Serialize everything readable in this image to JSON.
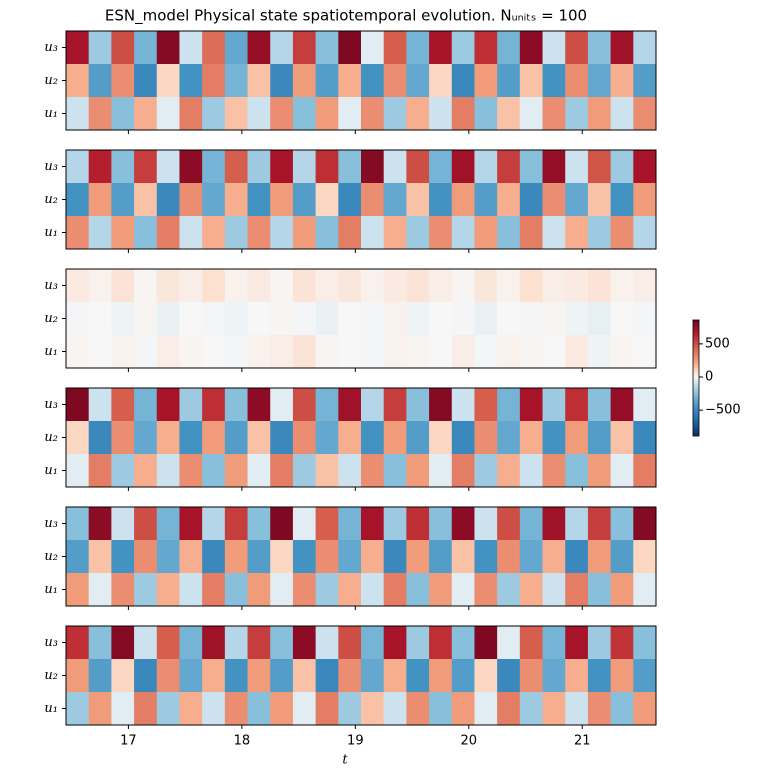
{
  "chart_data": {
    "type": "heatmap",
    "title": "ESN_model Physical state spatiotemporal evolution. Nᵤₙᵢₜₛ = 100",
    "xlabel": "t",
    "colormap": "RdBu_r",
    "xlim": [
      16.45,
      21.65
    ],
    "xticks": [
      17,
      18,
      19,
      20,
      21
    ],
    "x_edges": [
      16.45,
      16.65,
      16.85,
      17.05,
      17.25,
      17.45,
      17.65,
      17.85,
      18.05,
      18.25,
      18.45,
      18.65,
      18.85,
      19.05,
      19.25,
      19.45,
      19.65,
      19.85,
      20.05,
      20.25,
      20.45,
      20.65,
      20.85,
      21.05,
      21.25,
      21.45,
      21.65
    ],
    "rows": [
      "u₃",
      "u₂",
      "u₁"
    ],
    "panels": [
      {
        "values": [
          [
            700,
            -200,
            500,
            -300,
            800,
            -100,
            400,
            -350,
            750,
            -150,
            550,
            -250,
            820,
            -50,
            450,
            -300,
            700,
            -200,
            600,
            -300,
            780,
            -100,
            500,
            -250,
            720,
            -150
          ],
          [
            200,
            -400,
            300,
            -500,
            100,
            -450,
            350,
            -300,
            150,
            -500,
            250,
            -400,
            200,
            -450,
            300,
            -350,
            100,
            -500,
            250,
            -400,
            150,
            -450,
            300,
            -350,
            200,
            -400
          ],
          [
            -100,
            300,
            -250,
            200,
            -50,
            350,
            -200,
            150,
            -100,
            300,
            -250,
            250,
            -50,
            300,
            -200,
            200,
            -100,
            350,
            -250,
            150,
            -50,
            300,
            -200,
            250,
            -100,
            300
          ]
        ]
      },
      {
        "values": [
          [
            -150,
            650,
            -250,
            550,
            -100,
            780,
            -300,
            450,
            -200,
            700,
            -150,
            600,
            -250,
            800,
            -100,
            500,
            -300,
            720,
            -150,
            550,
            -250,
            760,
            -100,
            480,
            -200,
            700
          ],
          [
            -450,
            250,
            -400,
            150,
            -500,
            300,
            -350,
            200,
            -450,
            250,
            -400,
            100,
            -500,
            300,
            -350,
            150,
            -450,
            250,
            -400,
            200,
            -500,
            300,
            -350,
            150,
            -450,
            250
          ],
          [
            300,
            -150,
            250,
            -250,
            350,
            -100,
            200,
            -200,
            300,
            -150,
            250,
            -250,
            350,
            -100,
            200,
            -200,
            300,
            -150,
            250,
            -250,
            350,
            -100,
            200,
            -200,
            300,
            -150
          ]
        ]
      },
      {
        "values": [
          [
            40,
            20,
            60,
            10,
            50,
            30,
            70,
            20,
            40,
            10,
            60,
            30,
            50,
            20,
            40,
            60,
            30,
            10,
            50,
            20,
            70,
            30,
            40,
            60,
            20,
            30
          ],
          [
            -10,
            0,
            -20,
            10,
            -30,
            0,
            -10,
            -20,
            0,
            10,
            -10,
            -30,
            0,
            -10,
            20,
            -20,
            0,
            -10,
            -30,
            0,
            -10,
            10,
            -20,
            -40,
            0,
            -10
          ],
          [
            10,
            0,
            20,
            -10,
            30,
            10,
            0,
            -10,
            20,
            30,
            60,
            10,
            0,
            -10,
            20,
            10,
            0,
            30,
            -10,
            20,
            10,
            0,
            40,
            -20,
            10,
            0
          ]
        ]
      },
      {
        "values": [
          [
            820,
            -100,
            450,
            -300,
            700,
            -200,
            600,
            -250,
            780,
            -50,
            500,
            -300,
            720,
            -150,
            550,
            -250,
            800,
            -100,
            450,
            -300,
            700,
            -200,
            600,
            -250,
            760,
            -50
          ],
          [
            100,
            -500,
            300,
            -350,
            200,
            -450,
            250,
            -400,
            150,
            -500,
            300,
            -350,
            200,
            -450,
            250,
            -400,
            100,
            -500,
            300,
            -350,
            200,
            -450,
            250,
            -400,
            150,
            -500
          ],
          [
            -50,
            350,
            -200,
            200,
            -100,
            300,
            -250,
            250,
            -50,
            350,
            -200,
            150,
            -100,
            300,
            -250,
            250,
            -50,
            350,
            -200,
            200,
            -100,
            300,
            -250,
            250,
            -50,
            350
          ]
        ]
      },
      {
        "values": [
          [
            -250,
            780,
            -100,
            500,
            -300,
            700,
            -150,
            550,
            -250,
            820,
            -50,
            450,
            -300,
            700,
            -200,
            600,
            -250,
            780,
            -100,
            500,
            -300,
            720,
            -150,
            550,
            -250,
            800
          ],
          [
            -400,
            150,
            -450,
            300,
            -350,
            200,
            -500,
            250,
            -400,
            100,
            -450,
            300,
            -350,
            200,
            -500,
            250,
            -400,
            150,
            -450,
            300,
            -350,
            200,
            -500,
            250,
            -400,
            100
          ],
          [
            250,
            -50,
            300,
            -200,
            200,
            -100,
            350,
            -250,
            250,
            -50,
            300,
            -200,
            200,
            -100,
            350,
            -250,
            250,
            -50,
            300,
            -200,
            200,
            -100,
            350,
            -250,
            250,
            -50
          ]
        ]
      },
      {
        "values": [
          [
            600,
            -250,
            800,
            -100,
            450,
            -300,
            720,
            -150,
            550,
            -250,
            780,
            -100,
            500,
            -300,
            700,
            -200,
            600,
            -250,
            820,
            -50,
            450,
            -300,
            700,
            -200,
            580,
            -250
          ],
          [
            250,
            -400,
            100,
            -500,
            300,
            -350,
            200,
            -450,
            250,
            -400,
            150,
            -500,
            300,
            -350,
            200,
            -450,
            250,
            -400,
            100,
            -500,
            300,
            -350,
            200,
            -450,
            250,
            -400
          ],
          [
            -200,
            250,
            -50,
            350,
            -200,
            200,
            -100,
            300,
            -250,
            250,
            -50,
            350,
            -200,
            150,
            -100,
            300,
            -250,
            250,
            -50,
            350,
            -200,
            200,
            -100,
            300,
            -250,
            250
          ]
        ]
      }
    ],
    "colorbar": {
      "lim": [
        -890,
        860
      ],
      "ticks": [
        {
          "value": -500,
          "label": "−500"
        },
        0,
        500
      ]
    }
  }
}
